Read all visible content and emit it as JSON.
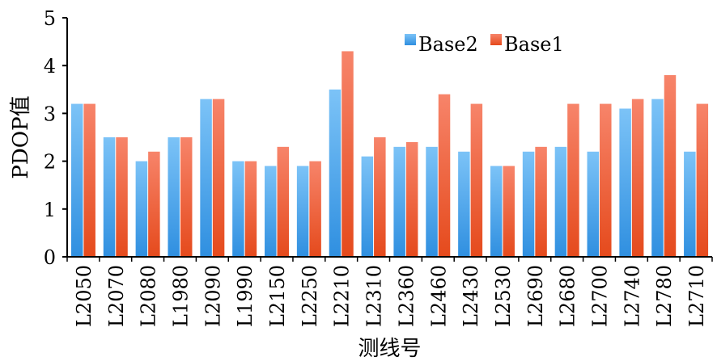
{
  "chart_data": {
    "type": "bar",
    "categories": [
      "L2050",
      "L2070",
      "L2080",
      "L1980",
      "L2090",
      "L1990",
      "L2150",
      "L2250",
      "L2210",
      "L2310",
      "L2360",
      "L2460",
      "L2430",
      "L2530",
      "L2690",
      "L2680",
      "L2700",
      "L2740",
      "L2780",
      "L2710"
    ],
    "series": [
      {
        "name": "Base2",
        "color": "#4aa3ec",
        "values": [
          3.2,
          2.5,
          2.0,
          2.5,
          3.3,
          2.0,
          1.9,
          1.9,
          3.5,
          2.1,
          2.3,
          2.3,
          2.2,
          1.9,
          2.2,
          2.3,
          2.2,
          3.1,
          3.3,
          2.2
        ]
      },
      {
        "name": "Base1",
        "color": "#f0562a",
        "values": [
          3.2,
          2.5,
          2.2,
          2.5,
          3.3,
          2.0,
          2.3,
          2.0,
          4.3,
          2.5,
          2.4,
          3.4,
          3.2,
          1.9,
          2.3,
          3.2,
          3.2,
          3.3,
          3.8,
          3.2
        ]
      }
    ],
    "xlabel": "测线号",
    "ylabel": "PDOP值",
    "ylim": [
      0,
      5
    ],
    "yticks": [
      "0",
      "1",
      "2",
      "3",
      "4",
      "5"
    ],
    "legend_position": "top-right",
    "grid": false
  }
}
